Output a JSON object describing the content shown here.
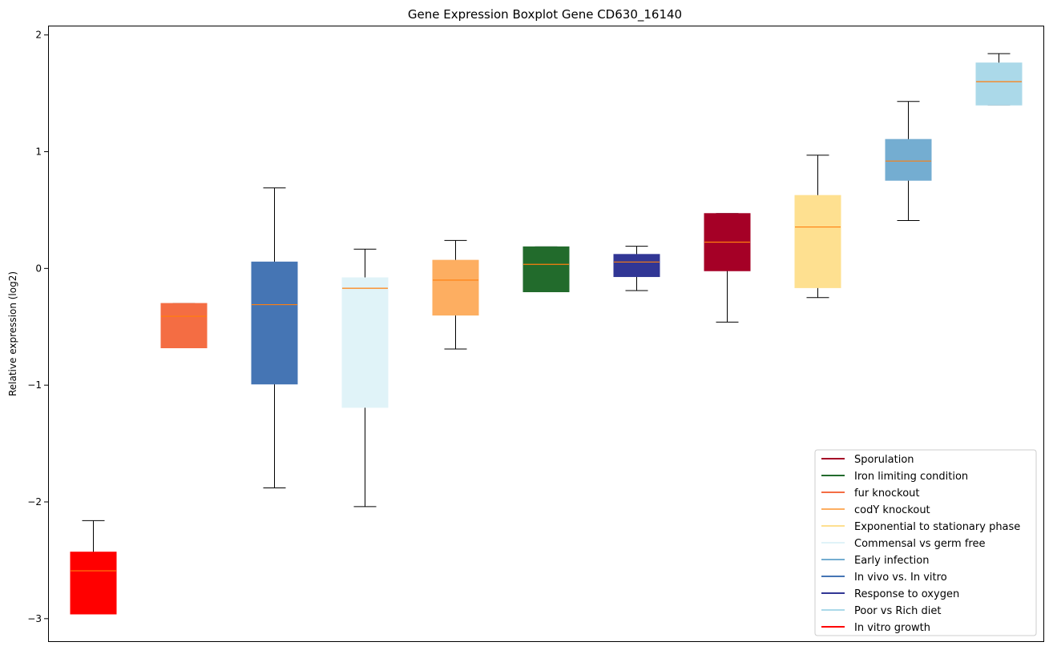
{
  "chart_data": {
    "type": "boxplot",
    "title": "Gene Expression Boxplot Gene CD630_16140",
    "xlabel": "",
    "ylabel": "Relative expression (log2)",
    "ylim": [
      -3.2,
      2.08
    ],
    "yticks": [
      2,
      1,
      0,
      -1,
      -2,
      -3
    ],
    "ytick_labels": [
      "2",
      "1",
      "0",
      "−1",
      "−2",
      "−3"
    ],
    "median_color": "#ff7f0e",
    "legend_position": "lower-right",
    "boxes": [
      {
        "name": "In vitro growth",
        "color": "#ff0000",
        "whislo": -2.96,
        "q1": -2.96,
        "med": -2.59,
        "q3": -2.43,
        "whishi": -2.16
      },
      {
        "name": "fur knockout",
        "color": "#f46d43",
        "whislo": -0.68,
        "q1": -0.68,
        "med": -0.41,
        "q3": -0.3,
        "whishi": -0.3
      },
      {
        "name": "In vivo vs. In vitro",
        "color": "#4575b4",
        "whislo": -1.88,
        "q1": -0.99,
        "med": -0.31,
        "q3": 0.055,
        "whishi": 0.69
      },
      {
        "name": "Commensal vs germ free",
        "color": "#e0f3f8",
        "whislo": -2.04,
        "q1": -1.19,
        "med": -0.17,
        "q3": -0.08,
        "whishi": 0.165
      },
      {
        "name": "codY knockout",
        "color": "#fdae61",
        "whislo": -0.69,
        "q1": -0.4,
        "med": -0.1,
        "q3": 0.07,
        "whishi": 0.24
      },
      {
        "name": "Iron limiting condition",
        "color": "#226b2c",
        "whislo": -0.2,
        "q1": -0.2,
        "med": 0.035,
        "q3": 0.185,
        "whishi": 0.185
      },
      {
        "name": "Response to oxygen",
        "color": "#313695",
        "whislo": -0.19,
        "q1": -0.07,
        "med": 0.055,
        "q3": 0.12,
        "whishi": 0.19
      },
      {
        "name": "Sporulation",
        "color": "#a50026",
        "whislo": -0.46,
        "q1": -0.02,
        "med": 0.225,
        "q3": 0.47,
        "whishi": 0.47
      },
      {
        "name": "Exponential to stationary phase",
        "color": "#fee090",
        "whislo": -0.25,
        "q1": -0.165,
        "med": 0.355,
        "q3": 0.625,
        "whishi": 0.97
      },
      {
        "name": "Early infection",
        "color": "#74add1",
        "whislo": 0.41,
        "q1": 0.755,
        "med": 0.92,
        "q3": 1.105,
        "whishi": 1.43
      },
      {
        "name": "Poor vs Rich diet",
        "color": "#abd9e9",
        "whislo": 1.4,
        "q1": 1.4,
        "med": 1.6,
        "q3": 1.76,
        "whishi": 1.84
      }
    ],
    "legend": [
      {
        "label": "Sporulation",
        "color": "#a50026"
      },
      {
        "label": "Iron limiting condition",
        "color": "#226b2c"
      },
      {
        "label": "fur knockout",
        "color": "#f46d43"
      },
      {
        "label": "codY knockout",
        "color": "#fdae61"
      },
      {
        "label": "Exponential to stationary phase",
        "color": "#fee090"
      },
      {
        "label": "Commensal vs germ free",
        "color": "#e0f3f8"
      },
      {
        "label": "Early infection",
        "color": "#74add1"
      },
      {
        "label": "In vivo vs. In vitro",
        "color": "#4575b4"
      },
      {
        "label": "Response to oxygen",
        "color": "#313695"
      },
      {
        "label": "Poor vs Rich diet",
        "color": "#abd9e9"
      },
      {
        "label": "In vitro growth",
        "color": "#ff0000"
      }
    ]
  }
}
